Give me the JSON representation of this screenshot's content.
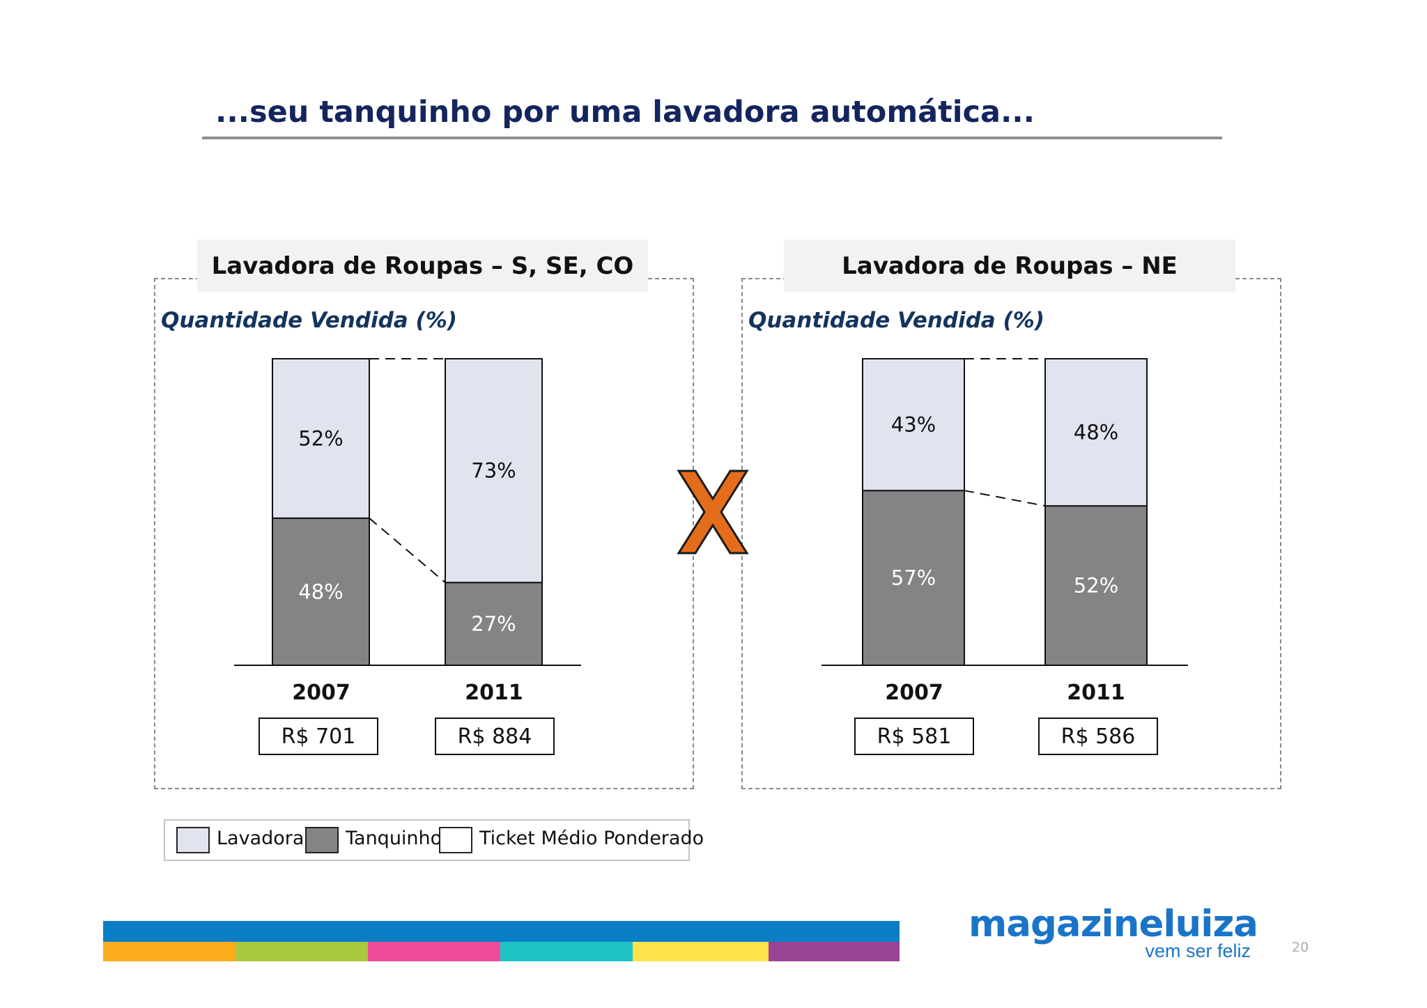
{
  "slide": {
    "title": "...seu tanquinho por uma lavadora automática...",
    "page_number": "20"
  },
  "panels": [
    {
      "header": "Lavadora de Roupas – S, SE, CO",
      "subtitle": "Quantidade Vendida (%)",
      "tickets": [
        "R$ 701",
        "R$ 884"
      ]
    },
    {
      "header": "Lavadora de Roupas – NE",
      "subtitle": "Quantidade Vendida (%)",
      "tickets": [
        "R$ 581",
        "R$ 586"
      ]
    }
  ],
  "legend": {
    "items": [
      {
        "label": "Lavadora",
        "color": "#e1e3ee"
      },
      {
        "label": "Tanquinho",
        "color": "#858386"
      },
      {
        "label": "Ticket Médio Ponderado",
        "color": "#ffffff"
      }
    ]
  },
  "logo": {
    "name_part1": "magazine",
    "name_part2": "luiza",
    "tagline": "vem ser feliz",
    "color": "#1a74c8"
  },
  "colors": {
    "title": "#14255e",
    "lavadora": "#e1e3ee",
    "tanquinho": "#858386",
    "separator_x": "#e46c1b",
    "stripe_blue": "#0a7ec4",
    "stripe_segments": [
      "#fbab1c",
      "#a8c83f",
      "#ef4b9b",
      "#1ec3c5",
      "#ffe34b",
      "#9a4497"
    ]
  },
  "chart_data": [
    {
      "type": "bar",
      "stacked": true,
      "title": "Lavadora de Roupas – S, SE, CO",
      "ylabel": "Quantidade Vendida (%)",
      "categories": [
        "2007",
        "2011"
      ],
      "series": [
        {
          "name": "Tanquinho",
          "values": [
            48,
            27
          ],
          "labels": [
            "48%",
            "27%"
          ]
        },
        {
          "name": "Lavadora",
          "values": [
            52,
            73
          ],
          "labels": [
            "52%",
            "73%"
          ]
        }
      ],
      "ticket_medio_ponderado": [
        "R$ 701",
        "R$ 884"
      ],
      "ylim": [
        0,
        100
      ],
      "grid": false
    },
    {
      "type": "bar",
      "stacked": true,
      "title": "Lavadora de Roupas – NE",
      "ylabel": "Quantidade Vendida (%)",
      "categories": [
        "2007",
        "2011"
      ],
      "series": [
        {
          "name": "Tanquinho",
          "values": [
            57,
            52
          ],
          "labels": [
            "57%",
            "52%"
          ]
        },
        {
          "name": "Lavadora",
          "values": [
            43,
            48
          ],
          "labels": [
            "43%",
            "48%"
          ]
        }
      ],
      "ticket_medio_ponderado": [
        "R$ 581",
        "R$ 586"
      ],
      "ylim": [
        0,
        100
      ],
      "grid": false
    }
  ]
}
